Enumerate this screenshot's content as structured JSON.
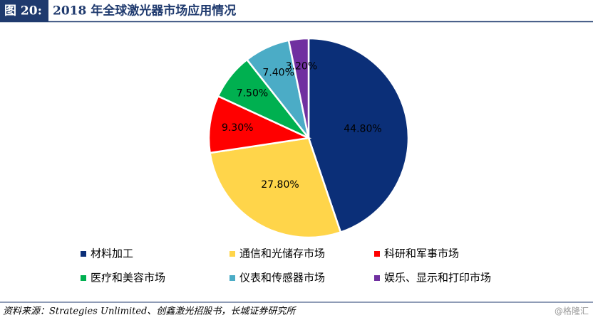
{
  "header": {
    "label": "图 20:"
  },
  "chart_data": {
    "type": "pie",
    "title": "2018 年全球激光器市场应用情况",
    "categories": [
      "材料加工",
      "通信和光储存市场",
      "科研和军事市场",
      "医疗和美容市场",
      "仪表和传感器市场",
      "娱乐、显示和打印市场"
    ],
    "values": [
      44.8,
      27.8,
      9.3,
      7.5,
      7.4,
      3.2
    ],
    "value_labels": [
      "44.80%",
      "27.80%",
      "9.30%",
      "7.50%",
      "7.40%",
      "3.20%"
    ],
    "colors": [
      "#0b2f78",
      "#ffd54a",
      "#ff0000",
      "#00b050",
      "#4bacc6",
      "#7030a0"
    ],
    "legend": "bottom"
  },
  "source": "资料来源：Strategies Unlimited、创鑫激光招股书，长城证券研究所",
  "watermark": "@格隆汇"
}
